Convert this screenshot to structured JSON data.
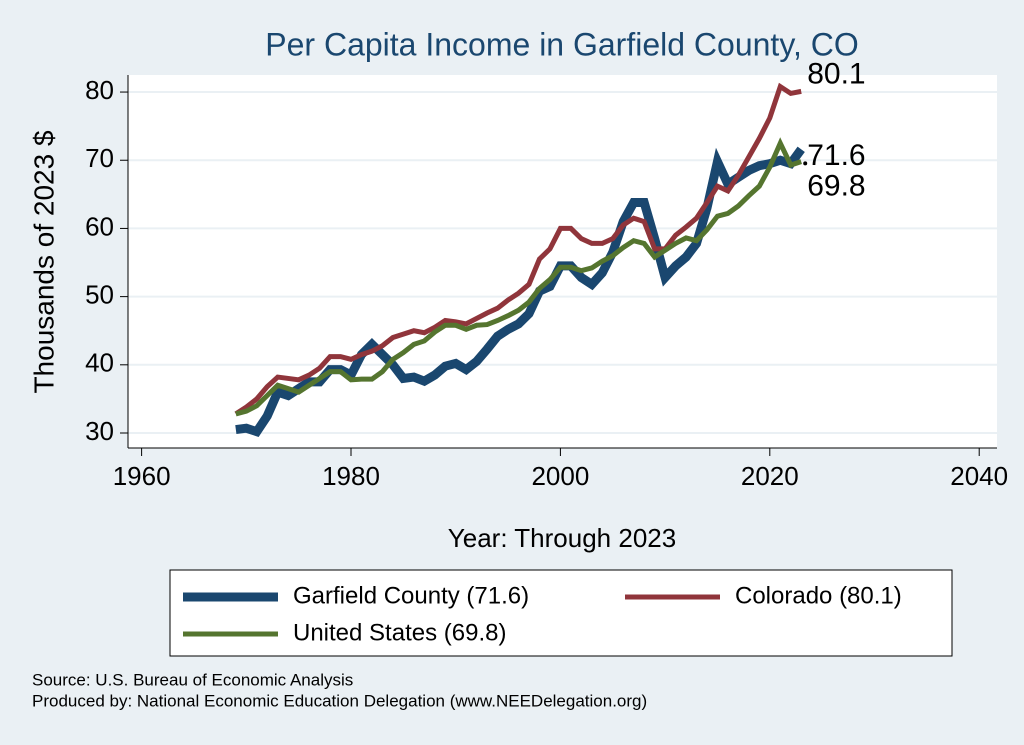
{
  "chart_data": {
    "type": "line",
    "title": "Per Capita Income in Garfield County, CO",
    "y_label": "Thousands of 2023 $",
    "x_label": "Year: Through 2023",
    "source": "Source: U.S. Bureau of Economic Analysis",
    "credit": "Produced by: National Economic Education Delegation (www.NEEDelegation.org)",
    "x": [
      1969,
      1970,
      1971,
      1972,
      1973,
      1974,
      1975,
      1976,
      1977,
      1978,
      1979,
      1980,
      1981,
      1982,
      1983,
      1984,
      1985,
      1986,
      1987,
      1988,
      1989,
      1990,
      1991,
      1992,
      1993,
      1994,
      1995,
      1996,
      1997,
      1998,
      1999,
      2000,
      2001,
      2002,
      2003,
      2004,
      2005,
      2006,
      2007,
      2008,
      2009,
      2010,
      2011,
      2012,
      2013,
      2014,
      2015,
      2016,
      2017,
      2018,
      2019,
      2020,
      2021,
      2022,
      2023
    ],
    "series": [
      {
        "name": "Garfield County (71.6)",
        "color": "#1a476f",
        "width": 9,
        "values": [
          30.5,
          30.7,
          30.2,
          32.5,
          36,
          35.5,
          36.5,
          37.5,
          37.5,
          39.3,
          39.3,
          38.5,
          41.5,
          43,
          41.5,
          40,
          38,
          38.2,
          37.6,
          38.5,
          39.8,
          40.2,
          39.3,
          40.5,
          42.3,
          44.2,
          45.2,
          46,
          47.5,
          50.8,
          51.5,
          54.5,
          54.5,
          52.8,
          51.8,
          53.5,
          56.5,
          61,
          63.8,
          63.8,
          58.5,
          52.8,
          54.5,
          55.8,
          57.8,
          63,
          69.8,
          66.5,
          67.5,
          68.5,
          69.2,
          69.5,
          70,
          69.5,
          71.6
        ]
      },
      {
        "name": "Colorado (80.1)",
        "color": "#90353b",
        "width": 5,
        "values": [
          32.8,
          33.8,
          35,
          36.8,
          38.2,
          38,
          37.8,
          38.5,
          39.5,
          41.2,
          41.2,
          40.8,
          41.5,
          42,
          42.8,
          44,
          44.5,
          45,
          44.7,
          45.5,
          46.5,
          46.3,
          46,
          46.8,
          47.6,
          48.3,
          49.5,
          50.5,
          51.8,
          55.5,
          57,
          60,
          60,
          58.5,
          57.8,
          57.8,
          58.5,
          60.5,
          61.5,
          61,
          57,
          57,
          59,
          60.2,
          61.5,
          63.8,
          66.2,
          65.5,
          67.8,
          70.5,
          73.2,
          76.2,
          80.8,
          79.8,
          80.1
        ]
      },
      {
        "name": "United States (69.8)",
        "color": "#55752f",
        "width": 5,
        "values": [
          32.8,
          33.2,
          34,
          35.5,
          37,
          36.5,
          36,
          37,
          38,
          39,
          39,
          37.8,
          37.9,
          37.9,
          39,
          40.8,
          41.8,
          43,
          43.5,
          44.8,
          45.8,
          45.8,
          45.2,
          45.8,
          45.9,
          46.5,
          47.2,
          48,
          49.2,
          51.2,
          52.5,
          54.3,
          54.3,
          53.8,
          54.2,
          55.2,
          56,
          57.2,
          58.2,
          57.8,
          55.8,
          56.8,
          57.8,
          58.6,
          58.2,
          59.8,
          61.8,
          62.2,
          63.3,
          64.8,
          66.2,
          69,
          72.5,
          69.3,
          69.8
        ]
      }
    ],
    "xlim": [
      1958.7,
      2041.7
    ],
    "ylim": [
      27.8,
      82.5
    ],
    "xticks": [
      1960,
      1980,
      2000,
      2020,
      2040
    ],
    "yticks": [
      30,
      40,
      50,
      60,
      70,
      80
    ],
    "grid": true
  }
}
